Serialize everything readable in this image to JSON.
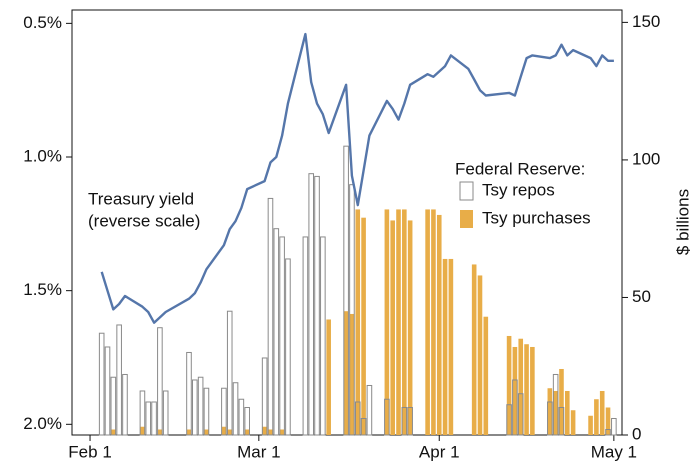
{
  "chart_data": {
    "type": "combo",
    "x": [
      2,
      3,
      4,
      5,
      6,
      9,
      10,
      11,
      12,
      13,
      17,
      18,
      19,
      20,
      23,
      24,
      25,
      26,
      27,
      30,
      31,
      32,
      33,
      34,
      37,
      38,
      39,
      40,
      41,
      44,
      45,
      46,
      47,
      48,
      51,
      52,
      53,
      54,
      55,
      58,
      59,
      60,
      61,
      62,
      65,
      66,
      67,
      68,
      72,
      73,
      74,
      75,
      76,
      79,
      80,
      81,
      82,
      83,
      86,
      87,
      88,
      89,
      90
    ],
    "xlim": [
      -3.1,
      91.4
    ],
    "xticks": [
      {
        "value": 0,
        "label": "Feb 1"
      },
      {
        "value": 29,
        "label": "Mar 1"
      },
      {
        "value": 60,
        "label": "Apr 1"
      },
      {
        "value": 90,
        "label": "May 1"
      }
    ],
    "ylim": [
      2.04,
      0.45
    ],
    "yticks": [
      {
        "value": 0.5,
        "label": "0.5%"
      },
      {
        "value": 1.0,
        "label": "1.0%"
      },
      {
        "value": 1.5,
        "label": "1.5%"
      },
      {
        "value": 2.0,
        "label": "2.0%"
      }
    ],
    "y2lim": [
      0,
      154.5
    ],
    "y2ticks": [
      0,
      50,
      100,
      150
    ],
    "y2_label": "$ billions",
    "legend_title": "Federal Reserve:",
    "annotation": "(reverse scale)",
    "series": [
      {
        "name": "Treasury yield",
        "type": "line",
        "color": "#5576aa",
        "values": [
          1.43,
          1.5,
          1.57,
          1.55,
          1.52,
          1.56,
          1.58,
          1.62,
          1.6,
          1.58,
          1.53,
          1.51,
          1.47,
          1.42,
          1.33,
          1.27,
          1.24,
          1.19,
          1.12,
          1.09,
          1.02,
          1.0,
          0.92,
          0.8,
          0.54,
          0.72,
          0.8,
          0.84,
          0.91,
          0.73,
          1.07,
          1.18,
          1.05,
          0.92,
          0.79,
          0.82,
          0.86,
          0.8,
          0.73,
          0.69,
          0.7,
          0.68,
          0.66,
          0.62,
          0.67,
          0.71,
          0.75,
          0.77,
          0.76,
          0.77,
          0.7,
          0.63,
          0.62,
          0.63,
          0.62,
          0.58,
          0.62,
          0.6,
          0.63,
          0.66,
          0.62,
          0.64,
          0.64
        ]
      },
      {
        "name": "Tsy repos",
        "type": "bar",
        "axis": "y2",
        "color": "#8a8a8a",
        "values": [
          37,
          32,
          21,
          40,
          22,
          16,
          12,
          12,
          39,
          16,
          30,
          20,
          21,
          17,
          17,
          45,
          19,
          13,
          10,
          28,
          86,
          75,
          72,
          64,
          72,
          95,
          94,
          72,
          null,
          105,
          91,
          12,
          6,
          18,
          13,
          null,
          null,
          10,
          10,
          null,
          null,
          null,
          null,
          null,
          null,
          null,
          null,
          null,
          11,
          20,
          15,
          null,
          null,
          12,
          22,
          10,
          null,
          null,
          null,
          null,
          null,
          2,
          6
        ]
      },
      {
        "name": "Tsy purchases",
        "type": "bar",
        "axis": "y2",
        "color": "#e8ad48",
        "values": [
          null,
          null,
          2,
          null,
          null,
          3,
          null,
          null,
          2,
          null,
          2,
          null,
          null,
          2,
          3,
          2,
          null,
          null,
          2,
          3,
          2,
          null,
          2,
          null,
          null,
          null,
          null,
          null,
          42,
          45,
          44,
          82,
          79,
          null,
          82,
          78,
          82,
          82,
          78,
          82,
          82,
          80,
          64,
          64,
          null,
          62,
          58,
          43,
          36,
          32,
          35,
          33,
          32,
          17,
          16,
          24,
          16,
          9,
          7,
          13,
          16,
          10,
          null
        ]
      }
    ]
  }
}
